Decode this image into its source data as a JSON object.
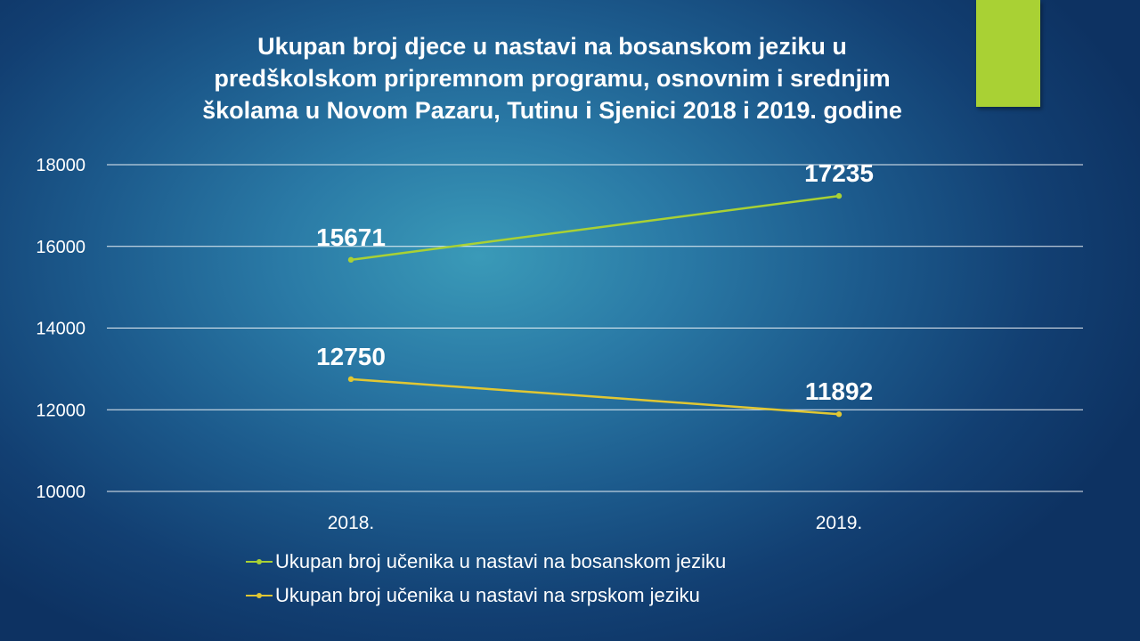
{
  "colors": {
    "accent_rect": "#a9d134",
    "series_1": "#a9d134",
    "series_2": "#e1c733",
    "gridline": "#ffffff",
    "text": "#ffffff"
  },
  "chart_data": {
    "type": "line",
    "title": [
      "Ukupan broj djece u nastavi na bosanskom jeziku u",
      "predškolskom pripremnom programu, osnovnim i srednjim",
      "školama u Novom Pazaru, Tutinu i Sjenici 2018 i 2019. godine"
    ],
    "categories": [
      "2018.",
      "2019."
    ],
    "series": [
      {
        "name": "Ukupan broj učenika u nastavi na bosanskom jeziku",
        "values": [
          15671,
          17235
        ],
        "color": "#a9d134"
      },
      {
        "name": "Ukupan broj učenika u nastavi na srpskom jeziku",
        "values": [
          12750,
          11892
        ],
        "color": "#e1c733"
      }
    ],
    "ylim": [
      10000,
      18000
    ],
    "yticks": [
      "10000",
      "12000",
      "14000",
      "16000",
      "18000"
    ],
    "grid": true,
    "data_labels": true,
    "legend_position": "bottom"
  }
}
